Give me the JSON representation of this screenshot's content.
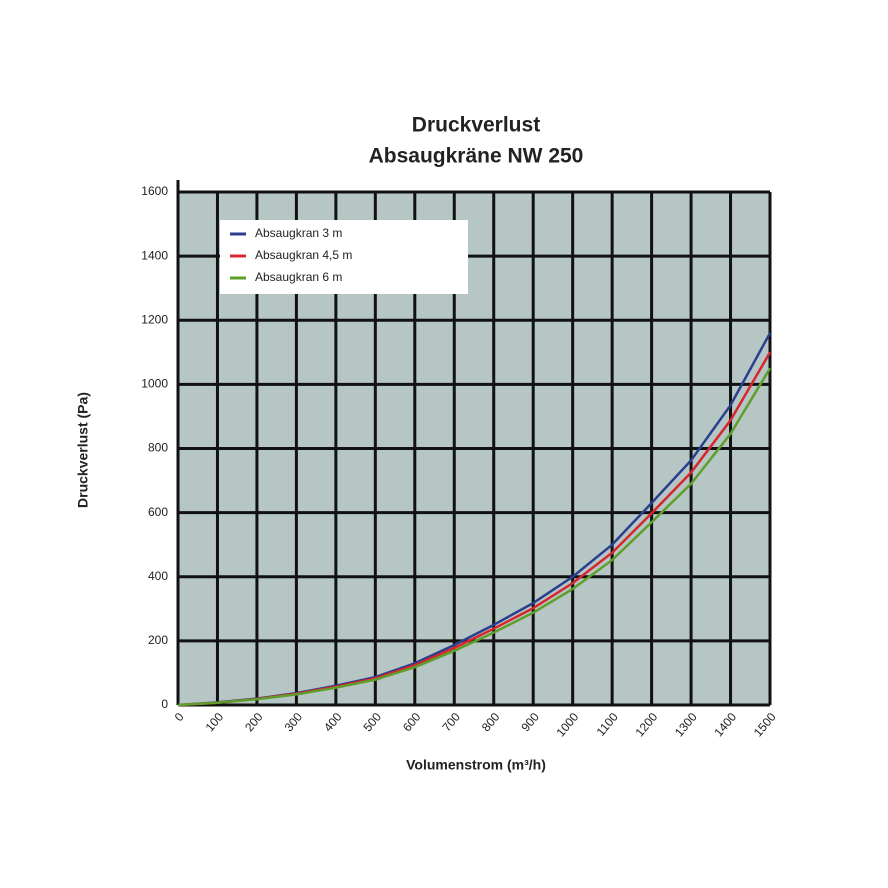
{
  "chart_data": {
    "type": "line",
    "title": "Druckverlust",
    "subtitle": "Absaugkräne NW 250",
    "x_label": "Volumenstrom (m³/h)",
    "y_label": "Druckverlust (Pa)",
    "x": [
      0,
      100,
      200,
      300,
      400,
      500,
      600,
      700,
      800,
      900,
      1000,
      1100,
      1200,
      1300,
      1400,
      1500
    ],
    "series": [
      {
        "name": "Absaugkran 3 m",
        "color": "#2b3f8f",
        "values": [
          0,
          8,
          20,
          37,
          60,
          87,
          130,
          187,
          250,
          318,
          400,
          500,
          630,
          763,
          935,
          1160
        ]
      },
      {
        "name": "Absaugkran 4,5 m",
        "color": "#d8262e",
        "values": [
          0,
          7,
          19,
          35,
          57,
          83,
          124,
          178,
          238,
          302,
          380,
          475,
          598,
          725,
          888,
          1100
        ]
      },
      {
        "name": "Absaugkran 6 m",
        "color": "#5e9e2a",
        "values": [
          0,
          7,
          18,
          33,
          54,
          79,
          118,
          169,
          226,
          288,
          362,
          452,
          570,
          690,
          846,
          1050
        ]
      }
    ],
    "xlim": [
      0,
      1500
    ],
    "xticks": [
      0,
      100,
      200,
      300,
      400,
      500,
      600,
      700,
      800,
      900,
      1000,
      1100,
      1200,
      1300,
      1400,
      1500
    ],
    "ylim": [
      0,
      1600
    ],
    "yticks": [
      0,
      200,
      400,
      600,
      800,
      1000,
      1200,
      1400,
      1600
    ],
    "grid": true,
    "legend": "upper-left",
    "plot_background": "#b6c6c5"
  }
}
